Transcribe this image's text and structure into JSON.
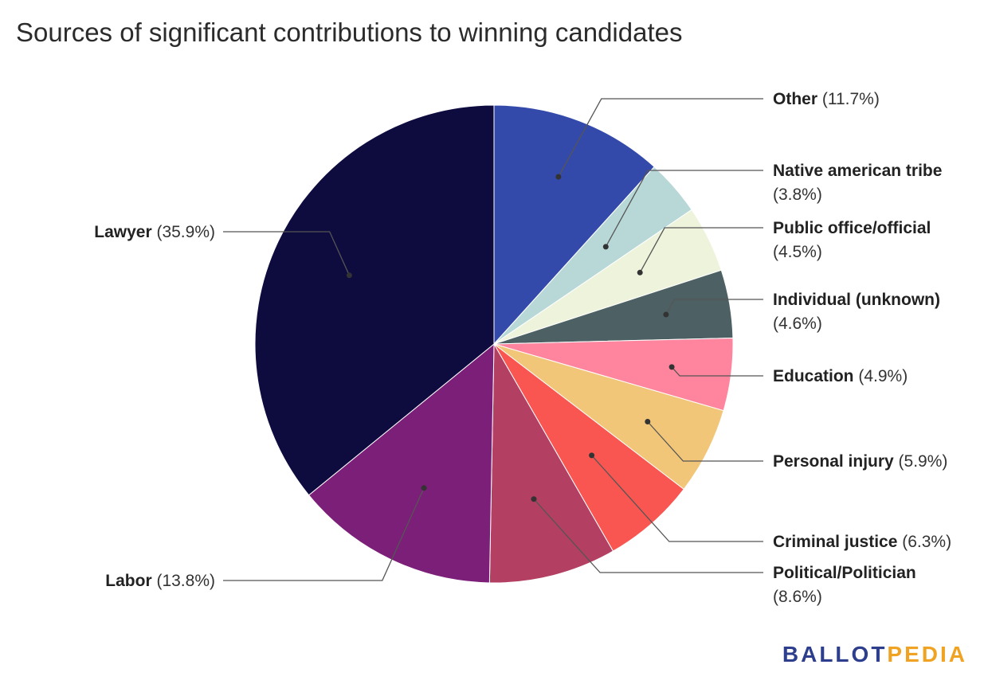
{
  "title": "Sources of significant contributions to winning candidates",
  "brand": {
    "part1": "BALLOT",
    "part2": "PEDIA",
    "color1": "#2c3e8c",
    "color2": "#f0a322"
  },
  "chart_data": {
    "type": "pie",
    "title": "Sources of significant contributions to winning candidates",
    "start_angle_deg": 0,
    "direction": "clockwise",
    "slices": [
      {
        "label": "Other",
        "pct_label": "(11.7%)",
        "value": 11.7,
        "color": "#344aab"
      },
      {
        "label": "Native american tribe",
        "pct_label": "(3.8%)",
        "value": 3.8,
        "color": "#b8d8d8"
      },
      {
        "label": "Public office/official",
        "pct_label": "(4.5%)",
        "value": 4.5,
        "color": "#eef3dc"
      },
      {
        "label": "Individual (unknown)",
        "pct_label": "(4.6%)",
        "value": 4.6,
        "color": "#4d6164"
      },
      {
        "label": "Education",
        "pct_label": "(4.9%)",
        "value": 4.9,
        "color": "#fe859d"
      },
      {
        "label": "Personal injury",
        "pct_label": "(5.9%)",
        "value": 5.9,
        "color": "#f2c678"
      },
      {
        "label": "Criminal justice",
        "pct_label": "(6.3%)",
        "value": 6.3,
        "color": "#f95652"
      },
      {
        "label": "Political/Politician",
        "pct_label": "(8.6%)",
        "value": 8.6,
        "color": "#b33f62"
      },
      {
        "label": "Labor",
        "pct_label": "(13.8%)",
        "value": 13.8,
        "color": "#7b1f79"
      },
      {
        "label": "Lawyer",
        "pct_label": "(35.9%)",
        "value": 35.9,
        "color": "#0e0b3f"
      }
    ]
  }
}
